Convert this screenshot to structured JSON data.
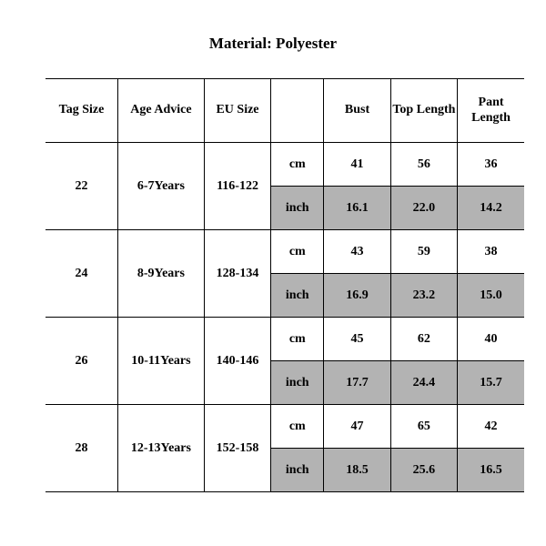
{
  "title": "Material: Polyester",
  "sizeChart": {
    "type": "table",
    "background_color": "#ffffff",
    "border_color": "#000000",
    "shaded_color": "#b3b3b3",
    "font_family": "Times New Roman",
    "header_fontsize": 14,
    "cell_fontsize": 14,
    "font_weight": "bold",
    "columnWidthsPct": [
      13,
      15.5,
      12,
      9.5,
      12,
      12,
      12
    ],
    "columns": [
      "Tag Size",
      "Age Advice",
      "EU Size",
      "",
      "Bust",
      "Top Length",
      "Pant Length"
    ],
    "units": [
      "cm",
      "inch"
    ],
    "rows": [
      {
        "tag": "22",
        "age": "6-7Years",
        "eu": "116-122",
        "cm": {
          "bust": "41",
          "top": "56",
          "pant": "36"
        },
        "inch": {
          "bust": "16.1",
          "top": "22.0",
          "pant": "14.2"
        }
      },
      {
        "tag": "24",
        "age": "8-9Years",
        "eu": "128-134",
        "cm": {
          "bust": "43",
          "top": "59",
          "pant": "38"
        },
        "inch": {
          "bust": "16.9",
          "top": "23.2",
          "pant": "15.0"
        }
      },
      {
        "tag": "26",
        "age": "10-11Years",
        "eu": "140-146",
        "cm": {
          "bust": "45",
          "top": "62",
          "pant": "40"
        },
        "inch": {
          "bust": "17.7",
          "top": "24.4",
          "pant": "15.7"
        }
      },
      {
        "tag": "28",
        "age": "12-13Years",
        "eu": "152-158",
        "cm": {
          "bust": "47",
          "top": "65",
          "pant": "42"
        },
        "inch": {
          "bust": "18.5",
          "top": "25.6",
          "pant": "16.5"
        }
      }
    ]
  }
}
